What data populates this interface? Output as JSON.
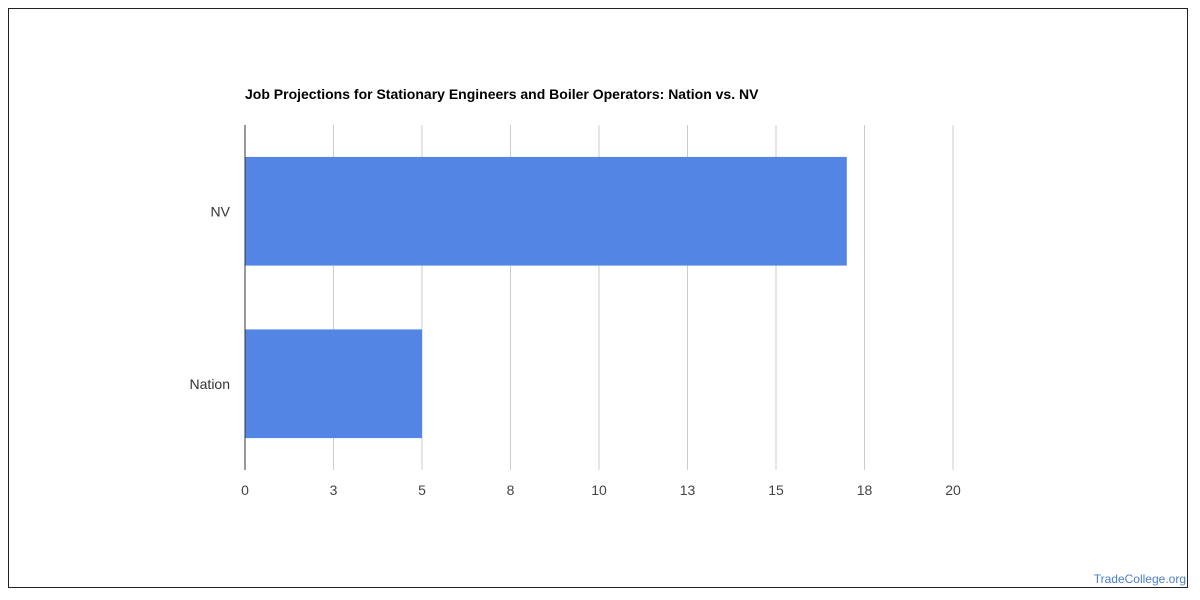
{
  "chart_data": {
    "type": "bar",
    "orientation": "horizontal",
    "title": "Job Projections for Stationary Engineers and Boiler Operators: Nation vs. NV",
    "categories": [
      "NV",
      "Nation"
    ],
    "values": [
      17,
      5
    ],
    "xlim": [
      0,
      20
    ],
    "ticks": [
      0,
      2.5,
      5,
      7.5,
      10,
      12.5,
      15,
      17.5,
      20
    ],
    "tick_labels": [
      "0",
      "3",
      "5",
      "8",
      "10",
      "13",
      "15",
      "18",
      "20"
    ],
    "grid": true,
    "legend": "none",
    "bar_color": "#5386e4",
    "grid_color": "#cccccc",
    "axis_color": "#333333"
  },
  "footer": {
    "credit": "TradeCollege.org"
  }
}
